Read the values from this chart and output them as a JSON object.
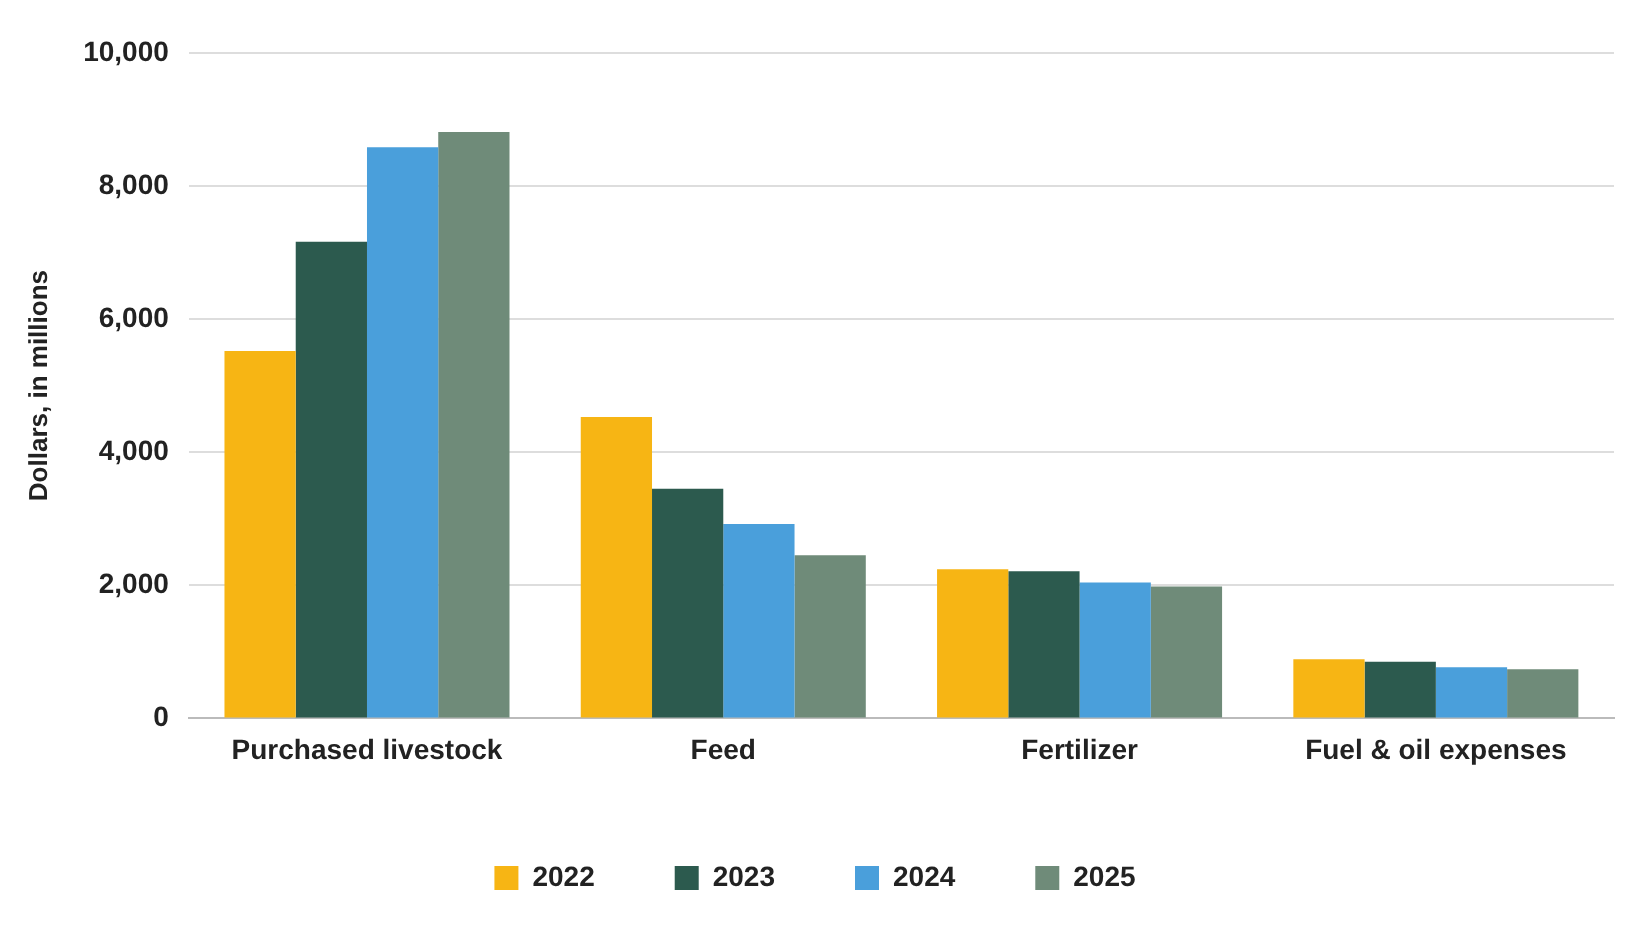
{
  "chart_data": {
    "type": "bar",
    "ylabel": "Dollars, in millions",
    "categories": [
      "Purchased livestock",
      "Feed",
      "Fertilizer",
      "Fuel & oil expenses"
    ],
    "series": [
      {
        "name": "2022",
        "color": "#f7b514",
        "values": [
          5520,
          4530,
          2240,
          890
        ]
      },
      {
        "name": "2023",
        "color": "#2c5a4e",
        "values": [
          7160,
          3450,
          2210,
          850
        ]
      },
      {
        "name": "2024",
        "color": "#4a9fdb",
        "values": [
          8580,
          2920,
          2040,
          770
        ]
      },
      {
        "name": "2025",
        "color": "#6f8b79",
        "values": [
          8810,
          2450,
          1980,
          740
        ]
      }
    ],
    "ylim": [
      0,
      10000
    ],
    "yticks": [
      0,
      {
        "value": 2000,
        "label": "2,000"
      },
      {
        "value": 4000,
        "label": "4,000"
      },
      {
        "value": 6000,
        "label": "6,000"
      },
      {
        "value": 8000,
        "label": "8,000"
      },
      {
        "value": 10000,
        "label": "10,000"
      }
    ],
    "grid": "y",
    "legend": "bottom"
  }
}
